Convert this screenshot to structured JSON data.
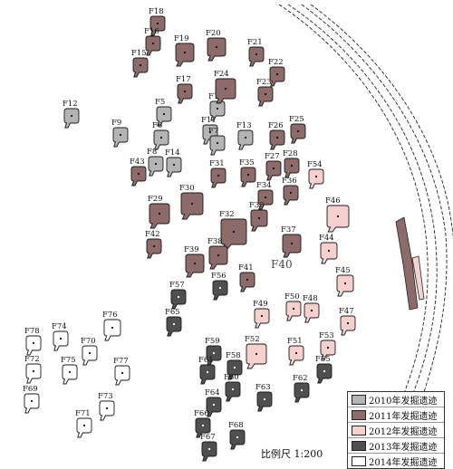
{
  "features": {
    "2010": [
      "F12",
      "F9",
      "F5",
      "F6",
      "F8",
      "F14",
      "F10",
      "F11",
      "F7",
      "F13"
    ],
    "2011": [
      "F18",
      "F16",
      "F19",
      "F20",
      "F15",
      "F21",
      "F22",
      "F17",
      "F24",
      "F23",
      "F25",
      "F26",
      "F43",
      "F27",
      "F28",
      "F31",
      "F35",
      "F36",
      "F34",
      "F29",
      "F30",
      "F33",
      "F32",
      "F37",
      "F42",
      "F38",
      "F39",
      "F41"
    ],
    "2012": [
      "F54",
      "F46",
      "F44",
      "F45",
      "F50",
      "F48",
      "F49",
      "F47",
      "F52",
      "F51",
      "F53"
    ],
    "2013": [
      "F57",
      "F56",
      "F65",
      "F59",
      "F58",
      "F61",
      "F55",
      "F60",
      "F62",
      "F64",
      "F63",
      "F66",
      "F68",
      "F67"
    ],
    "2014": [
      "F78",
      "F74",
      "F76",
      "F70",
      "F72",
      "F75",
      "F77",
      "F69",
      "F73",
      "F71"
    ]
  },
  "map_label": "F40",
  "legend": {
    "items": [
      {
        "label": "2010年发掘遗迹",
        "color": "#b4b4b4"
      },
      {
        "label": "2011年发掘遗迹",
        "color": "#8c6b6a"
      },
      {
        "label": "2012年发掘遗迹",
        "color": "#f6cfcf"
      },
      {
        "label": "2013年发掘遗迹",
        "color": "#4f4f4f"
      },
      {
        "label": "2014年发掘遗迹",
        "color": "#ffffff"
      }
    ]
  },
  "scale_text": "比例尺 1:200",
  "colors": {
    "stroke": "#1a1a1a",
    "road": "#222222",
    "channel_fill": "#f3d2d2"
  }
}
